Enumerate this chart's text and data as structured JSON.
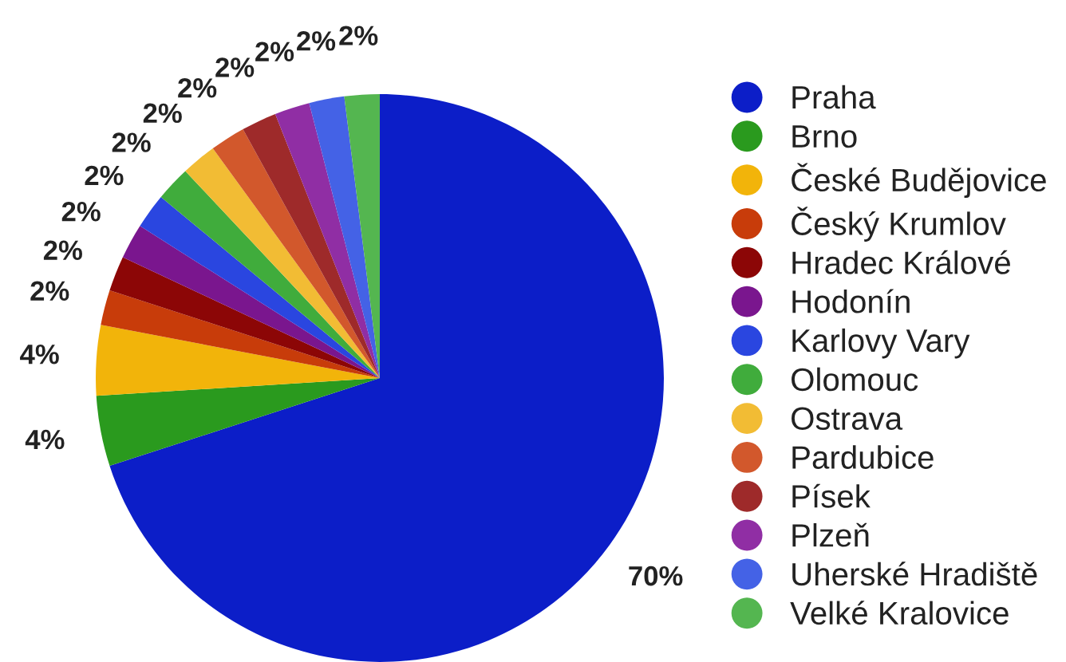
{
  "chart_data": {
    "type": "pie",
    "categories": [
      "Praha",
      "Brno",
      "České Budějovice",
      "Český Krumlov",
      "Hradec Králové",
      "Hodonín",
      "Karlovy Vary",
      "Olomouc",
      "Ostrava",
      "Pardubice",
      "Písek",
      "Plzeň",
      "Uherské Hradiště",
      "Velké Kralovice"
    ],
    "values": [
      70,
      4,
      4,
      2,
      2,
      2,
      2,
      2,
      2,
      2,
      2,
      2,
      2,
      2
    ],
    "colors": [
      "#0c1ec8",
      "#2a9a1e",
      "#f2b40a",
      "#c83c0a",
      "#8c0606",
      "#7a168e",
      "#2a46e0",
      "#40ac3c",
      "#f2bc34",
      "#d2582c",
      "#9e2a2a",
      "#902ea4",
      "#4462e6",
      "#54b650"
    ],
    "value_labels": [
      "70%",
      "4%",
      "4%",
      "2%",
      "2%",
      "2%",
      "2%",
      "2%",
      "2%",
      "2%",
      "2%",
      "2%",
      "2%",
      "2%"
    ],
    "legend": "right"
  }
}
